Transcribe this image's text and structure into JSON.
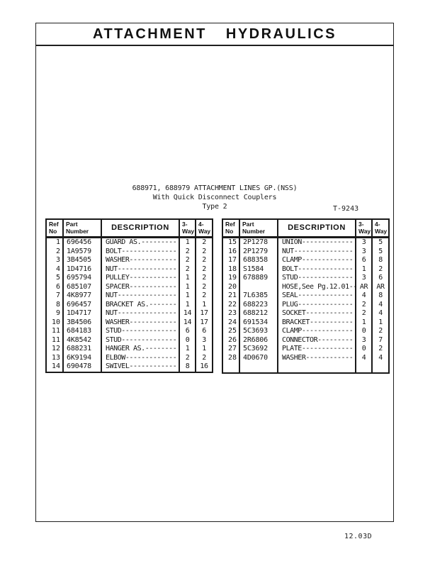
{
  "banner": {
    "word1": "ATTACHMENT",
    "word2": "HYDRAULICS"
  },
  "title": {
    "line1": "688971, 688979 ATTACHMENT LINES GP.(NSS)",
    "line2": "With Quick Disconnect Couplers",
    "line3": "Type 2",
    "drawing_number": "T-9243"
  },
  "footer": {
    "page_code": "12.03D"
  },
  "table_header": {
    "ref_line1": "Ref",
    "ref_line2": "No",
    "part_line1": "Part",
    "part_line2": "Number",
    "description": "DESCRIPTION",
    "way3_line1": "3-",
    "way3_line2": "Way",
    "way4_line1": "4-",
    "way4_line2": "Way"
  },
  "colors": {
    "ink": "#161616",
    "paper": "#ffffff",
    "border": "#1a1a1a"
  },
  "tables": {
    "left_rows": [
      {
        "ref": "1",
        "part": "696456",
        "desc": "GUARD AS.---------",
        "w3": "1",
        "w4": "2"
      },
      {
        "ref": "2",
        "part": "1A9579",
        "desc": "BOLT--------------",
        "w3": "2",
        "w4": "2"
      },
      {
        "ref": "3",
        "part": "3B4505",
        "desc": "WASHER------------",
        "w3": "2",
        "w4": "2"
      },
      {
        "ref": "4",
        "part": "1D4716",
        "desc": "NUT---------------",
        "w3": "2",
        "w4": "2"
      },
      {
        "ref": "5",
        "part": "695794",
        "desc": "PULLEY------------",
        "w3": "1",
        "w4": "2"
      },
      {
        "ref": "6",
        "part": "685107",
        "desc": "SPACER------------",
        "w3": "1",
        "w4": "2"
      },
      {
        "ref": "7",
        "part": "4K8977",
        "desc": "NUT---------------",
        "w3": "1",
        "w4": "2"
      },
      {
        "ref": "8",
        "part": "696457",
        "desc": "BRACKET AS.-------",
        "w3": "1",
        "w4": "1"
      },
      {
        "ref": "9",
        "part": "1D4717",
        "desc": "NUT---------------",
        "w3": "14",
        "w4": "17"
      },
      {
        "ref": "10",
        "part": "3B4506",
        "desc": "WASHER------------",
        "w3": "14",
        "w4": "17"
      },
      {
        "ref": "11",
        "part": "684183",
        "desc": "STUD--------------",
        "w3": "6",
        "w4": "6"
      },
      {
        "ref": "11",
        "part": "4K8542",
        "desc": "STUD--------------",
        "w3": "0",
        "w4": "3"
      },
      {
        "ref": "12",
        "part": "688231",
        "desc": "HANGER AS.--------",
        "w3": "1",
        "w4": "1"
      },
      {
        "ref": "13",
        "part": "6K9194",
        "desc": "ELBOW-------------",
        "w3": "2",
        "w4": "2"
      },
      {
        "ref": "14",
        "part": "690478",
        "desc": "SWIVEL------------",
        "w3": "8",
        "w4": "16"
      }
    ],
    "right_rows": [
      {
        "ref": "15",
        "part": "2P1278",
        "desc": "UNION-------------",
        "w3": "3",
        "w4": "5"
      },
      {
        "ref": "16",
        "part": "2P1279",
        "desc": "NUT---------------",
        "w3": "3",
        "w4": "5"
      },
      {
        "ref": "17",
        "part": "688358",
        "desc": "CLAMP-------------",
        "w3": "6",
        "w4": "8"
      },
      {
        "ref": "18",
        "part": "S1584",
        "desc": "BOLT--------------",
        "w3": "1",
        "w4": "2"
      },
      {
        "ref": "19",
        "part": "678889",
        "desc": "STUD--------------",
        "w3": "3",
        "w4": "6"
      },
      {
        "ref": "20",
        "part": "",
        "desc": "HOSE,See Pg.12.01--",
        "w3": "AR",
        "w4": "AR"
      },
      {
        "ref": "21",
        "part": "7L6385",
        "desc": "SEAL--------------",
        "w3": "4",
        "w4": "8"
      },
      {
        "ref": "22",
        "part": "688223",
        "desc": "PLUG--------------",
        "w3": "2",
        "w4": "4"
      },
      {
        "ref": "23",
        "part": "688212",
        "desc": "SOCKET------------",
        "w3": "2",
        "w4": "4"
      },
      {
        "ref": "24",
        "part": "691534",
        "desc": "BRACKET-----------",
        "w3": "1",
        "w4": "1"
      },
      {
        "ref": "25",
        "part": "5C3693",
        "desc": "CLAMP-------------",
        "w3": "0",
        "w4": "2"
      },
      {
        "ref": "26",
        "part": "2R6806",
        "desc": "CONNECTOR---------",
        "w3": "3",
        "w4": "7"
      },
      {
        "ref": "27",
        "part": "5C3692",
        "desc": "PLATE-------------",
        "w3": "0",
        "w4": "2"
      },
      {
        "ref": "28",
        "part": "4D0670",
        "desc": "WASHER------------",
        "w3": "4",
        "w4": "4"
      }
    ]
  }
}
